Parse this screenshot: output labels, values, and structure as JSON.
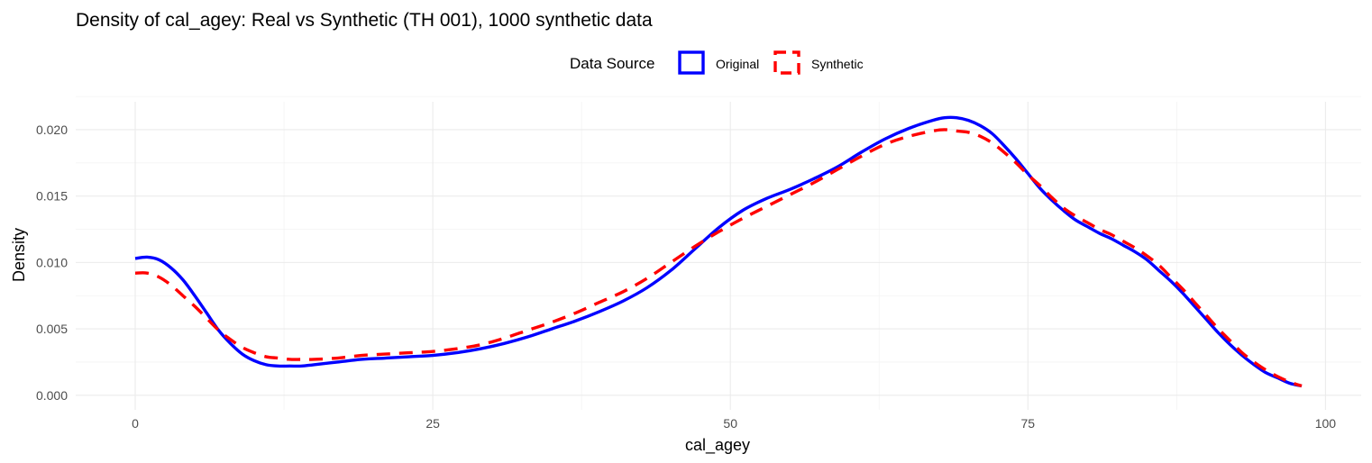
{
  "chart_data": {
    "type": "line",
    "title": "Density of cal_agey: Real vs Synthetic (TH 001), 1000 synthetic data",
    "xlabel": "cal_agey",
    "ylabel": "Density",
    "xlim": [
      -5,
      103
    ],
    "ylim": [
      -0.0011,
      0.0221
    ],
    "x_ticks": [
      0,
      25,
      50,
      75,
      100
    ],
    "x_tick_labels": [
      "0",
      "25",
      "50",
      "75",
      "100"
    ],
    "y_ticks": [
      0,
      0.005,
      0.01,
      0.015,
      0.02
    ],
    "y_tick_labels": [
      "0.000",
      "0.005",
      "0.010",
      "0.015",
      "0.020"
    ],
    "grid": true,
    "legend": {
      "title": "Data Source",
      "position": "top"
    },
    "series": [
      {
        "name": "Original",
        "color": "#0000ff",
        "line_style": "solid",
        "points": [
          [
            0,
            0.0103
          ],
          [
            1,
            0.0104
          ],
          [
            2,
            0.0102
          ],
          [
            3,
            0.0096
          ],
          [
            4,
            0.0087
          ],
          [
            5,
            0.0075
          ],
          [
            6,
            0.0062
          ],
          [
            7,
            0.0049
          ],
          [
            8,
            0.0039
          ],
          [
            9,
            0.0031
          ],
          [
            10,
            0.0026
          ],
          [
            11,
            0.0023
          ],
          [
            12,
            0.0022
          ],
          [
            13,
            0.0022
          ],
          [
            14,
            0.0022
          ],
          [
            15,
            0.0023
          ],
          [
            17,
            0.0025
          ],
          [
            19,
            0.0027
          ],
          [
            21,
            0.0028
          ],
          [
            23,
            0.0029
          ],
          [
            25,
            0.003
          ],
          [
            27,
            0.0032
          ],
          [
            29,
            0.0035
          ],
          [
            31,
            0.0039
          ],
          [
            33,
            0.0044
          ],
          [
            35,
            0.005
          ],
          [
            37,
            0.0056
          ],
          [
            39,
            0.0063
          ],
          [
            41,
            0.0071
          ],
          [
            43,
            0.0081
          ],
          [
            45,
            0.0094
          ],
          [
            47,
            0.011
          ],
          [
            49,
            0.0126
          ],
          [
            51,
            0.0139
          ],
          [
            53,
            0.0148
          ],
          [
            55,
            0.0155
          ],
          [
            57,
            0.0163
          ],
          [
            59,
            0.0172
          ],
          [
            61,
            0.0183
          ],
          [
            63,
            0.0193
          ],
          [
            65,
            0.0201
          ],
          [
            67,
            0.0207
          ],
          [
            68,
            0.0209
          ],
          [
            69,
            0.0209
          ],
          [
            70,
            0.0207
          ],
          [
            71,
            0.0203
          ],
          [
            72,
            0.0197
          ],
          [
            73,
            0.0188
          ],
          [
            74,
            0.0178
          ],
          [
            75,
            0.0167
          ],
          [
            76,
            0.0156
          ],
          [
            77,
            0.0147
          ],
          [
            78,
            0.0139
          ],
          [
            79,
            0.0132
          ],
          [
            80,
            0.0127
          ],
          [
            81,
            0.0122
          ],
          [
            82,
            0.0118
          ],
          [
            83,
            0.0113
          ],
          [
            84,
            0.0108
          ],
          [
            85,
            0.0102
          ],
          [
            86,
            0.0094
          ],
          [
            87,
            0.0086
          ],
          [
            88,
            0.0077
          ],
          [
            89,
            0.0067
          ],
          [
            90,
            0.0057
          ],
          [
            91,
            0.0047
          ],
          [
            92,
            0.0038
          ],
          [
            93,
            0.003
          ],
          [
            94,
            0.0023
          ],
          [
            95,
            0.0017
          ],
          [
            96,
            0.0013
          ],
          [
            97,
            0.0009
          ],
          [
            98,
            0.0007
          ]
        ]
      },
      {
        "name": "Synthetic",
        "color": "#ff0000",
        "line_style": "dashed",
        "points": [
          [
            0,
            0.0092
          ],
          [
            1,
            0.0092
          ],
          [
            2,
            0.0089
          ],
          [
            3,
            0.0083
          ],
          [
            4,
            0.0075
          ],
          [
            5,
            0.0067
          ],
          [
            6,
            0.0058
          ],
          [
            7,
            0.0049
          ],
          [
            8,
            0.0042
          ],
          [
            9,
            0.0036
          ],
          [
            10,
            0.0032
          ],
          [
            11,
            0.0029
          ],
          [
            12,
            0.0028
          ],
          [
            13,
            0.0027
          ],
          [
            14,
            0.0027
          ],
          [
            15,
            0.0027
          ],
          [
            17,
            0.0028
          ],
          [
            19,
            0.003
          ],
          [
            21,
            0.0031
          ],
          [
            23,
            0.0032
          ],
          [
            25,
            0.0033
          ],
          [
            27,
            0.0035
          ],
          [
            29,
            0.0038
          ],
          [
            31,
            0.0043
          ],
          [
            33,
            0.0049
          ],
          [
            35,
            0.0055
          ],
          [
            37,
            0.0062
          ],
          [
            39,
            0.007
          ],
          [
            41,
            0.0078
          ],
          [
            43,
            0.0088
          ],
          [
            45,
            0.01
          ],
          [
            47,
            0.0112
          ],
          [
            49,
            0.0123
          ],
          [
            51,
            0.0133
          ],
          [
            53,
            0.0142
          ],
          [
            55,
            0.0151
          ],
          [
            57,
            0.016
          ],
          [
            59,
            0.017
          ],
          [
            61,
            0.018
          ],
          [
            63,
            0.0189
          ],
          [
            65,
            0.0195
          ],
          [
            67,
            0.0199
          ],
          [
            68,
            0.02
          ],
          [
            69,
            0.0199
          ],
          [
            70,
            0.0198
          ],
          [
            71,
            0.0195
          ],
          [
            72,
            0.019
          ],
          [
            73,
            0.0183
          ],
          [
            74,
            0.0175
          ],
          [
            75,
            0.0166
          ],
          [
            76,
            0.0158
          ],
          [
            77,
            0.0149
          ],
          [
            78,
            0.0141
          ],
          [
            79,
            0.0135
          ],
          [
            80,
            0.013
          ],
          [
            81,
            0.0125
          ],
          [
            82,
            0.0121
          ],
          [
            83,
            0.0116
          ],
          [
            84,
            0.0111
          ],
          [
            85,
            0.0105
          ],
          [
            86,
            0.0098
          ],
          [
            87,
            0.0089
          ],
          [
            88,
            0.008
          ],
          [
            89,
            0.007
          ],
          [
            90,
            0.006
          ],
          [
            91,
            0.005
          ],
          [
            92,
            0.0041
          ],
          [
            93,
            0.0032
          ],
          [
            94,
            0.0025
          ],
          [
            95,
            0.0019
          ],
          [
            96,
            0.0014
          ],
          [
            97,
            0.001
          ],
          [
            98,
            0.0007
          ]
        ]
      }
    ]
  }
}
